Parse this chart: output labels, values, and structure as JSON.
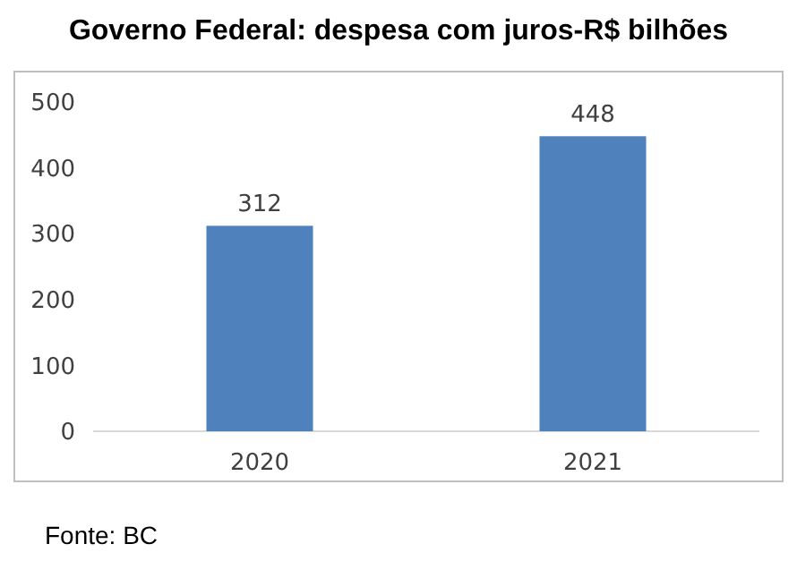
{
  "chart_data": {
    "type": "bar",
    "title": "Governo Federal: despesa com juros-R$ bilhões",
    "categories": [
      "2020",
      "2021"
    ],
    "values": [
      312,
      448
    ],
    "color": "#4f81bd",
    "ylim": [
      0,
      500
    ],
    "yticks": [
      0,
      100,
      200,
      300,
      400,
      500
    ],
    "grid": false,
    "data_labels": true,
    "annotations": [
      "Fonte: BC"
    ]
  }
}
